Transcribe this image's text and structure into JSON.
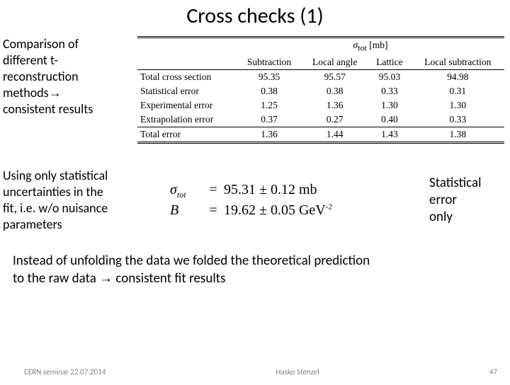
{
  "title": "Cross checks (1)",
  "note1": {
    "l1": "Comparison of",
    "l2": "different t-",
    "l3": "reconstruction",
    "l4": "methods",
    "arrow": "→",
    "l5": "consistent results"
  },
  "table": {
    "super_header": "σ_tot [mb]",
    "cols": [
      "",
      "Subtraction",
      "Local angle",
      "Lattice",
      "Local subtraction"
    ],
    "rows": [
      [
        "Total cross section",
        "95.35",
        "95.57",
        "95.03",
        "94.98"
      ],
      [
        "Statistical error",
        "0.38",
        "0.38",
        "0.33",
        "0.31"
      ],
      [
        "Experimental error",
        "1.25",
        "1.36",
        "1.30",
        "1.30"
      ],
      [
        "Extrapolation error",
        "0.37",
        "0.27",
        "0.40",
        "0.33"
      ]
    ],
    "total_row": [
      "Total error",
      "1.36",
      "1.44",
      "1.43",
      "1.38"
    ]
  },
  "note2": {
    "l1": "Using only statistical",
    "l2": "uncertainties in the",
    "l3": "fit, i.e. w/o nuisance",
    "l4": "parameters"
  },
  "eqs": {
    "sigma": {
      "sym": "σ",
      "sub": "tot",
      "val": "95.31 ± 0.12 mb"
    },
    "B": {
      "sym": "B",
      "val_pre": "19.62 ± 0.05 GeV",
      "exp": "-2"
    }
  },
  "note3": {
    "l1": "Statistical",
    "l2": "error",
    "l3": "only"
  },
  "bottom": {
    "l1_a": "Instead of unfolding the data we folded the theoretical prediction",
    "l2_a": "to the raw data ",
    "arrow": "→",
    "l2_b": " consistent fit results"
  },
  "footer": {
    "left": "CERN seminar 22.07.2014",
    "center": "Hasko Stenzel",
    "page": "47"
  }
}
